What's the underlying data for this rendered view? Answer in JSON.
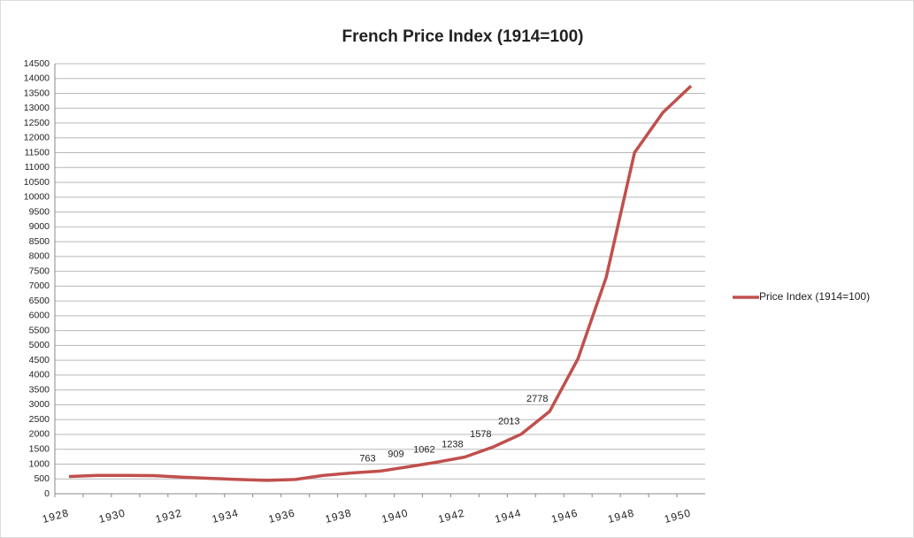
{
  "chart_data": {
    "type": "line",
    "title": "French Price Index (1914=100)",
    "categories": [
      "1928",
      null,
      "1930",
      null,
      "1932",
      null,
      "1934",
      null,
      "1936",
      null,
      "1938",
      null,
      "1940",
      null,
      "1942",
      null,
      "1944",
      null,
      "1946",
      null,
      "1948",
      null,
      "1950"
    ],
    "series": [
      {
        "name": "Price Index (1914=100)",
        "color": "#c0504d",
        "values": [
          580,
          620,
          620,
          610,
          560,
          520,
          480,
          450,
          480,
          620,
          700,
          763,
          909,
          1062,
          1238,
          1578,
          2013,
          2778,
          4550,
          7300,
          11500,
          12850,
          13750
        ],
        "value_labels": [
          null,
          null,
          null,
          null,
          null,
          null,
          null,
          null,
          null,
          null,
          null,
          "763",
          "909",
          "1062",
          "1238",
          "1578",
          "2013",
          "2778",
          null,
          null,
          null,
          null,
          null
        ]
      }
    ],
    "ylim": [
      0,
      14500
    ],
    "yticks": [
      0,
      500,
      1000,
      1500,
      2000,
      2500,
      3000,
      3500,
      4000,
      4500,
      5000,
      5500,
      6000,
      6500,
      7000,
      7500,
      8000,
      8500,
      9000,
      9500,
      10000,
      10500,
      11000,
      11500,
      12000,
      12500,
      13000,
      13500,
      14000,
      14500
    ],
    "grid": true,
    "legend": "right"
  }
}
